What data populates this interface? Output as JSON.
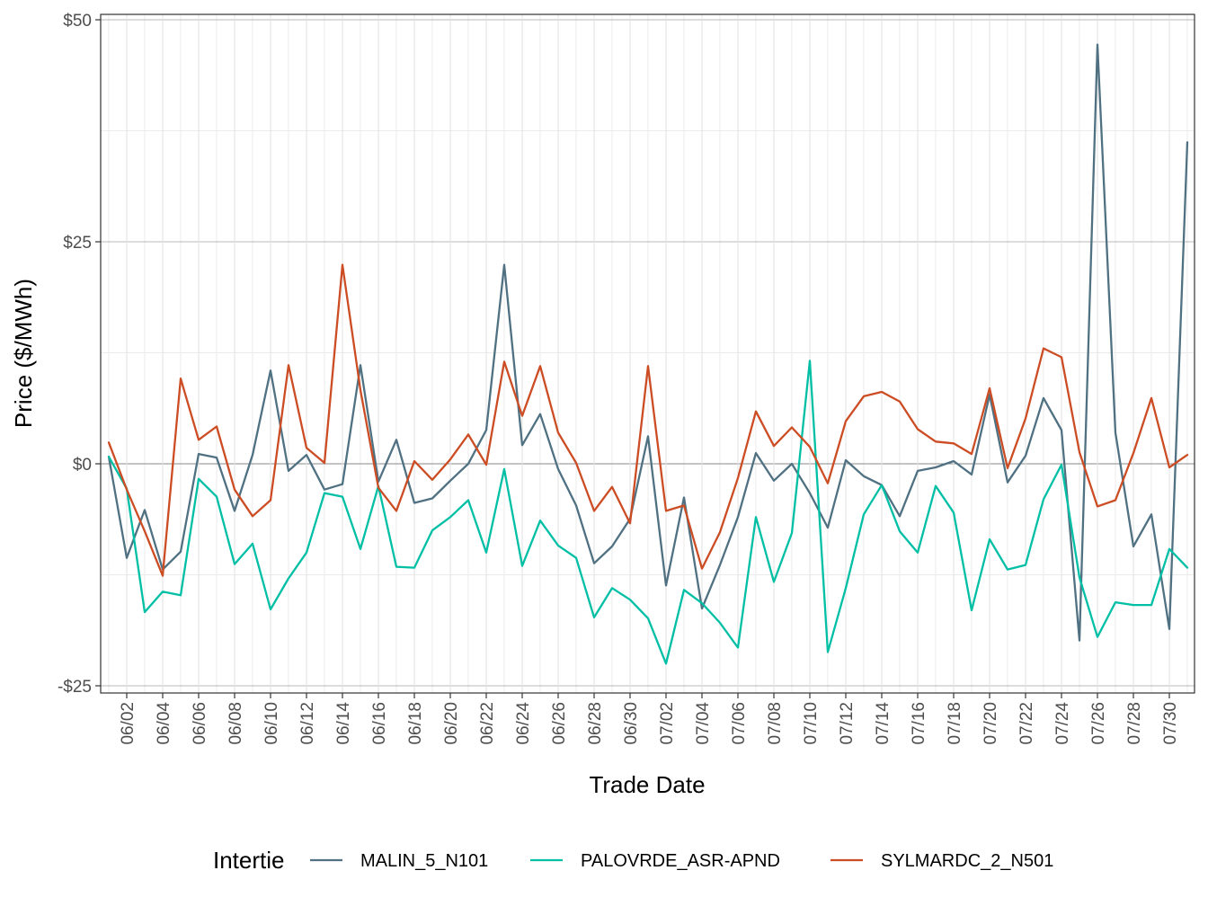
{
  "chart_data": {
    "type": "line",
    "xlabel": "Trade Date",
    "ylabel": "Price ($/MWh)",
    "ylim": [
      -25,
      50
    ],
    "y_ticks": [
      -25,
      0,
      25,
      50
    ],
    "y_tick_labels": [
      "-$25",
      "$0",
      "$25",
      "$50"
    ],
    "x_tick_labels": [
      "06/02",
      "06/04",
      "06/06",
      "06/08",
      "06/10",
      "06/12",
      "06/14",
      "06/16",
      "06/18",
      "06/20",
      "06/22",
      "06/24",
      "06/26",
      "06/28",
      "06/30",
      "07/02",
      "07/04",
      "07/06",
      "07/08",
      "07/10",
      "07/12",
      "07/14",
      "07/16",
      "07/18",
      "07/20",
      "07/22",
      "07/24",
      "07/26",
      "07/28",
      "07/30"
    ],
    "x": [
      "06/01",
      "06/02",
      "06/03",
      "06/04",
      "06/05",
      "06/06",
      "06/07",
      "06/08",
      "06/09",
      "06/10",
      "06/11",
      "06/12",
      "06/13",
      "06/14",
      "06/15",
      "06/16",
      "06/17",
      "06/18",
      "06/19",
      "06/20",
      "06/21",
      "06/22",
      "06/23",
      "06/24",
      "06/25",
      "06/26",
      "06/27",
      "06/28",
      "06/29",
      "06/30",
      "07/01",
      "07/02",
      "07/03",
      "07/04",
      "07/05",
      "07/06",
      "07/07",
      "07/08",
      "07/09",
      "07/10",
      "07/11",
      "07/12",
      "07/13",
      "07/14",
      "07/15",
      "07/16",
      "07/17",
      "07/18",
      "07/19",
      "07/20",
      "07/21",
      "07/22",
      "07/23",
      "07/24",
      "07/25",
      "07/26",
      "07/27",
      "07/28",
      "07/29",
      "07/30",
      "07/31"
    ],
    "legend_title": "Intertie",
    "legend_position": "bottom",
    "grid": true,
    "series": [
      {
        "name": "MALIN_5_N101",
        "color": "#4f7182",
        "values": [
          0.8,
          -10.6,
          -5.2,
          -11.9,
          -9.9,
          1.1,
          0.7,
          -5.3,
          1.0,
          10.5,
          -0.8,
          1.0,
          -2.9,
          -2.3,
          11.1,
          -2.0,
          2.7,
          -4.4,
          -3.9,
          -1.9,
          0.0,
          3.8,
          22.4,
          2.1,
          5.6,
          -0.6,
          -4.7,
          -11.2,
          -9.3,
          -6.2,
          3.1,
          -13.7,
          -3.8,
          -16.3,
          -11.4,
          -6.0,
          1.2,
          -1.9,
          0.0,
          -3.3,
          -7.2,
          0.4,
          -1.4,
          -2.4,
          -5.9,
          -0.8,
          -0.4,
          0.3,
          -1.2,
          7.8,
          -2.1,
          0.9,
          7.4,
          3.8,
          -19.9,
          47.2,
          3.5,
          -9.3,
          -5.7,
          -18.6,
          36.2
        ]
      },
      {
        "name": "PALOVRDE_ASR-APND",
        "color": "#00bfa5",
        "values": [
          0.8,
          -2.8,
          -16.7,
          -14.4,
          -14.8,
          -1.7,
          -3.7,
          -11.3,
          -9.0,
          -16.4,
          -12.9,
          -10.0,
          -3.3,
          -3.7,
          -9.6,
          -2.5,
          -11.6,
          -11.7,
          -7.5,
          -6.0,
          -4.1,
          -10.0,
          -0.6,
          -11.5,
          -6.4,
          -9.2,
          -10.6,
          -17.3,
          -14.0,
          -15.3,
          -17.4,
          -22.5,
          -14.2,
          -15.7,
          -17.9,
          -20.7,
          -6.0,
          -13.3,
          -7.8,
          11.6,
          -21.2,
          -14.0,
          -5.7,
          -2.4,
          -7.6,
          -10.0,
          -2.5,
          -5.5,
          -16.5,
          -8.5,
          -11.9,
          -11.4,
          -4.0,
          -0.1,
          -12.8,
          -19.5,
          -15.6,
          -15.9,
          -15.9,
          -9.6,
          -11.7
        ]
      },
      {
        "name": "SYLMARDC_2_N501",
        "color": "#cc4c24",
        "values": [
          2.4,
          -2.9,
          -7.6,
          -12.6,
          9.6,
          2.7,
          4.2,
          -2.9,
          -5.9,
          -4.1,
          11.1,
          1.8,
          0.1,
          22.4,
          8.3,
          -2.7,
          -5.3,
          0.3,
          -1.8,
          0.5,
          3.3,
          -0.1,
          11.5,
          5.4,
          11.0,
          3.5,
          0.1,
          -5.3,
          -2.6,
          -6.7,
          11.0,
          -5.3,
          -4.7,
          -11.8,
          -7.7,
          -1.6,
          5.9,
          2.0,
          4.1,
          1.9,
          -2.2,
          4.8,
          7.6,
          8.1,
          7.0,
          3.9,
          2.5,
          2.3,
          1.1,
          8.5,
          -0.5,
          5.1,
          13.0,
          12.0,
          1.3,
          -4.8,
          -4.1,
          1.2,
          7.4,
          -0.4,
          1.0
        ]
      }
    ]
  }
}
